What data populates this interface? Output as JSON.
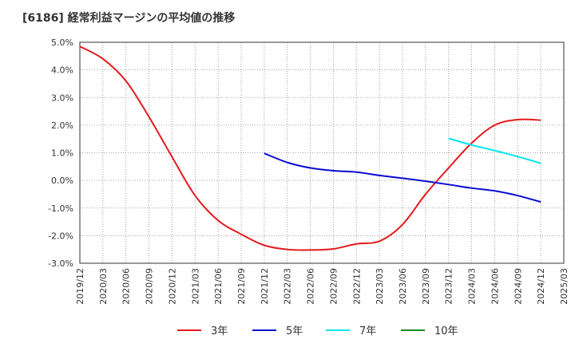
{
  "title": "[6186]  経常利益マージンの平均値の推移",
  "chart_data": {
    "type": "line",
    "title": "[6186]  経常利益マージンの平均値の推移",
    "xlabel": "",
    "ylabel": "",
    "x_ticks": [
      "2019/12",
      "2020/03",
      "2020/06",
      "2020/09",
      "2020/12",
      "2021/03",
      "2021/06",
      "2021/09",
      "2021/12",
      "2022/03",
      "2022/06",
      "2022/09",
      "2022/12",
      "2023/03",
      "2023/06",
      "2023/09",
      "2023/12",
      "2024/03",
      "2024/06",
      "2024/09",
      "2024/12",
      "2025/03"
    ],
    "y_ticks": [
      5.0,
      4.0,
      3.0,
      2.0,
      1.0,
      0.0,
      -1.0,
      -2.0,
      -3.0
    ],
    "y_tick_labels": [
      "5.0%",
      "4.0%",
      "3.0%",
      "2.0%",
      "1.0%",
      "0.0%",
      "-1.0%",
      "-2.0%",
      "-3.0%"
    ],
    "ylim": [
      -3.0,
      5.0
    ],
    "grid": true,
    "legend_position": "bottom",
    "series": [
      {
        "name": "3年",
        "color": "#e31a1c",
        "x": [
          "2019/12",
          "2020/03",
          "2020/06",
          "2020/09",
          "2020/12",
          "2021/03",
          "2021/06",
          "2021/09",
          "2021/12",
          "2022/03",
          "2022/06",
          "2022/09",
          "2022/12",
          "2023/03",
          "2023/06",
          "2023/09",
          "2023/12",
          "2024/03",
          "2024/06",
          "2024/09",
          "2024/12"
        ],
        "values": [
          4.85,
          4.4,
          3.6,
          2.3,
          0.85,
          -0.55,
          -1.45,
          -1.95,
          -2.35,
          -2.5,
          -2.52,
          -2.48,
          -2.3,
          -2.2,
          -1.6,
          -0.5,
          0.45,
          1.35,
          2.0,
          2.2,
          2.18
        ]
      },
      {
        "name": "5年",
        "color": "#0a0ad2",
        "x": [
          "2021/12",
          "2022/03",
          "2022/06",
          "2022/09",
          "2022/12",
          "2023/03",
          "2023/06",
          "2023/09",
          "2023/12",
          "2024/03",
          "2024/06",
          "2024/09",
          "2024/12"
        ],
        "values": [
          0.98,
          0.65,
          0.45,
          0.35,
          0.3,
          0.18,
          0.08,
          -0.03,
          -0.15,
          -0.28,
          -0.38,
          -0.55,
          -0.78
        ]
      },
      {
        "name": "7年",
        "color": "#00e5ee",
        "x": [
          "2023/12",
          "2024/03",
          "2024/06",
          "2024/09",
          "2024/12"
        ],
        "values": [
          1.52,
          1.28,
          1.08,
          0.86,
          0.62
        ]
      },
      {
        "name": "10年",
        "color": "#1a8a1a",
        "x": [],
        "values": []
      }
    ]
  }
}
